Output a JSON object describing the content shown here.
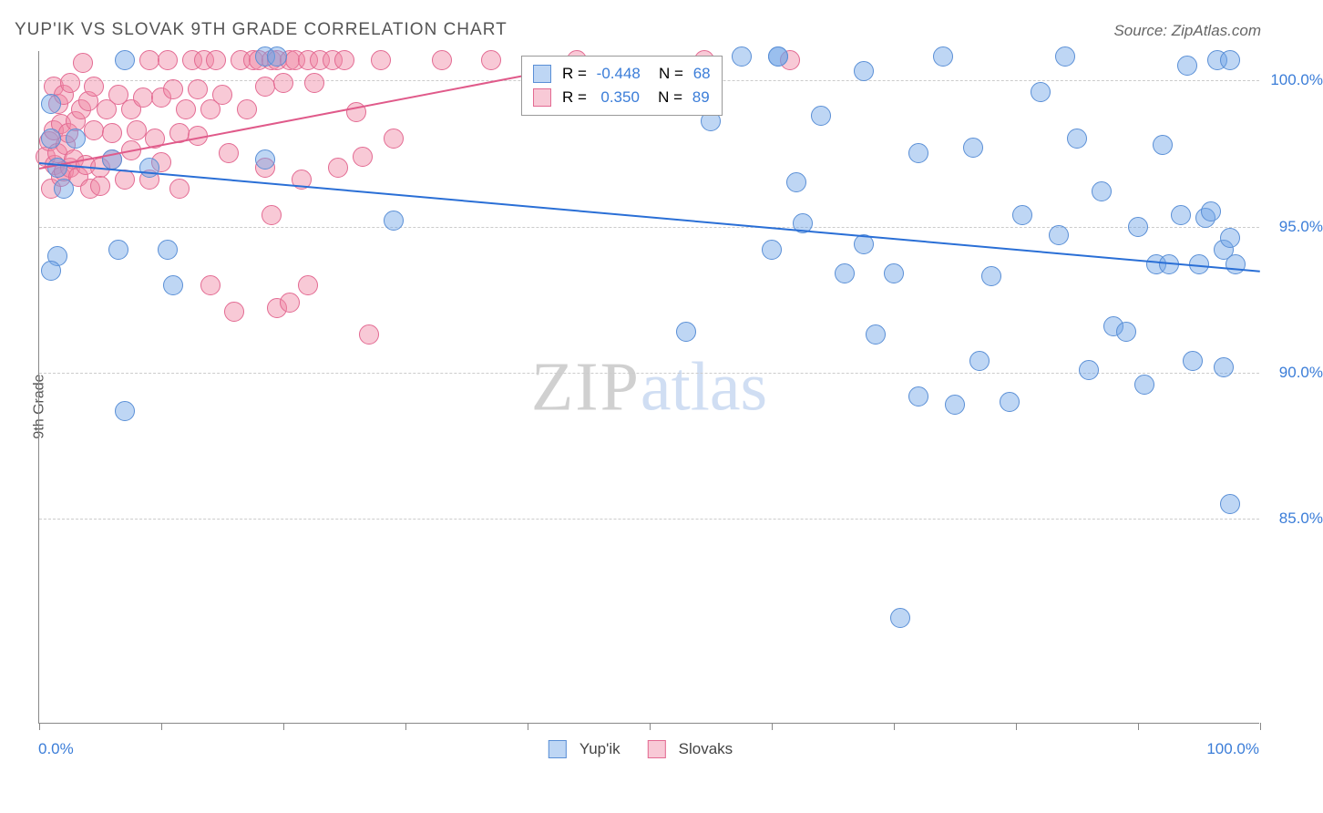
{
  "title": "YUP'IK VS SLOVAK 9TH GRADE CORRELATION CHART",
  "source": "Source: ZipAtlas.com",
  "ylabel": "9th Grade",
  "watermark_strong": "ZIP",
  "watermark_light": "atlas",
  "xaxis": {
    "min": 0.0,
    "max": 100.0,
    "label_left": "0.0%",
    "label_right": "100.0%",
    "tick_positions": [
      0,
      10,
      20,
      30,
      40,
      50,
      60,
      70,
      80,
      90,
      100
    ]
  },
  "yaxis": {
    "min": 78.0,
    "max": 101.0,
    "ticks": [
      {
        "value": 100.0,
        "label": "100.0%"
      },
      {
        "value": 95.0,
        "label": "95.0%"
      },
      {
        "value": 90.0,
        "label": "90.0%"
      },
      {
        "value": 85.0,
        "label": "85.0%"
      }
    ]
  },
  "colors": {
    "yupik_fill": "rgba(110,165,230,0.45)",
    "yupik_stroke": "#5a8fd6",
    "slovak_fill": "rgba(240,135,165,0.45)",
    "slovak_stroke": "#e36a92",
    "yupik_line": "#2a6fd6",
    "slovak_line": "#e05a8a",
    "grid": "#cccccc",
    "axis": "#888888",
    "text": "#555555",
    "tick_label": "#3b7dd8"
  },
  "stats_box": {
    "rows": [
      {
        "swatch": "yupik",
        "r_label": "R = ",
        "r_value": "-0.448",
        "n_label": "   N = ",
        "n_value": "68"
      },
      {
        "swatch": "slovak",
        "r_label": "R = ",
        "r_value": " 0.350",
        "n_label": "   N = ",
        "n_value": "89"
      }
    ]
  },
  "bottom_legend": [
    {
      "swatch": "yupik",
      "label": "Yup'ik"
    },
    {
      "swatch": "slovak",
      "label": "Slovaks"
    }
  ],
  "trend_lines": {
    "yupik": {
      "x1": 0,
      "y1": 97.2,
      "x2": 100,
      "y2": 93.5,
      "color_key": "yupik_line"
    },
    "slovak": {
      "x1": 0,
      "y1": 97.0,
      "x2": 45,
      "y2": 100.6,
      "color_key": "slovak_line"
    }
  },
  "point_radius": 11,
  "series": {
    "yupik": [
      [
        60.5,
        100.8
      ],
      [
        7.0,
        100.7
      ],
      [
        6.0,
        97.3
      ],
      [
        1.0,
        99.2
      ],
      [
        1.5,
        97.0
      ],
      [
        1.0,
        98.0
      ],
      [
        2.0,
        96.3
      ],
      [
        3.0,
        98.0
      ],
      [
        6.5,
        94.2
      ],
      [
        9.0,
        97.0
      ],
      [
        18.5,
        100.8
      ],
      [
        18.5,
        97.3
      ],
      [
        19.5,
        100.8
      ],
      [
        7.0,
        88.7
      ],
      [
        1.5,
        94.0
      ],
      [
        10.5,
        94.2
      ],
      [
        11.0,
        93.0
      ],
      [
        1.0,
        93.5
      ],
      [
        29.0,
        95.2
      ],
      [
        57.5,
        100.8
      ],
      [
        53.0,
        91.4
      ],
      [
        55.0,
        98.6
      ],
      [
        60.0,
        94.2
      ],
      [
        60.5,
        100.8
      ],
      [
        62.0,
        96.5
      ],
      [
        62.5,
        95.1
      ],
      [
        64.0,
        98.8
      ],
      [
        66.0,
        93.4
      ],
      [
        67.5,
        94.4
      ],
      [
        67.5,
        100.3
      ],
      [
        68.5,
        91.3
      ],
      [
        70.0,
        93.4
      ],
      [
        70.5,
        81.6
      ],
      [
        72.0,
        89.2
      ],
      [
        72.0,
        97.5
      ],
      [
        74.0,
        100.8
      ],
      [
        75.0,
        88.9
      ],
      [
        76.5,
        97.7
      ],
      [
        77.0,
        90.4
      ],
      [
        78.0,
        93.3
      ],
      [
        79.5,
        89.0
      ],
      [
        80.5,
        95.4
      ],
      [
        82.0,
        99.6
      ],
      [
        83.5,
        94.7
      ],
      [
        84.0,
        100.8
      ],
      [
        85.0,
        98.0
      ],
      [
        86.0,
        90.1
      ],
      [
        87.0,
        96.2
      ],
      [
        88.0,
        91.6
      ],
      [
        89.0,
        91.4
      ],
      [
        90.0,
        95.0
      ],
      [
        90.5,
        89.6
      ],
      [
        91.5,
        93.7
      ],
      [
        92.0,
        97.8
      ],
      [
        92.5,
        93.7
      ],
      [
        93.5,
        95.4
      ],
      [
        94.0,
        100.5
      ],
      [
        94.5,
        90.4
      ],
      [
        95.0,
        93.7
      ],
      [
        95.5,
        95.3
      ],
      [
        96.0,
        95.5
      ],
      [
        96.5,
        100.7
      ],
      [
        97.0,
        94.2
      ],
      [
        97.0,
        90.2
      ],
      [
        97.5,
        94.6
      ],
      [
        97.5,
        85.5
      ],
      [
        97.5,
        100.7
      ],
      [
        98.0,
        93.7
      ]
    ],
    "slovak": [
      [
        0.5,
        97.4
      ],
      [
        0.8,
        97.9
      ],
      [
        1.0,
        96.3
      ],
      [
        1.2,
        98.3
      ],
      [
        1.2,
        99.8
      ],
      [
        1.3,
        97.1
      ],
      [
        1.5,
        97.5
      ],
      [
        1.6,
        99.2
      ],
      [
        1.8,
        96.7
      ],
      [
        1.8,
        98.5
      ],
      [
        2.0,
        99.5
      ],
      [
        2.0,
        96.9
      ],
      [
        2.2,
        97.8
      ],
      [
        2.4,
        98.2
      ],
      [
        2.5,
        99.9
      ],
      [
        2.5,
        97.0
      ],
      [
        2.8,
        97.3
      ],
      [
        3.0,
        98.6
      ],
      [
        3.2,
        96.7
      ],
      [
        3.4,
        99.0
      ],
      [
        3.6,
        100.6
      ],
      [
        3.8,
        97.1
      ],
      [
        4.0,
        99.3
      ],
      [
        4.2,
        96.3
      ],
      [
        4.5,
        98.3
      ],
      [
        4.5,
        99.8
      ],
      [
        5.0,
        97.0
      ],
      [
        5.0,
        96.4
      ],
      [
        5.5,
        99.0
      ],
      [
        6.0,
        98.2
      ],
      [
        6.0,
        97.3
      ],
      [
        6.5,
        99.5
      ],
      [
        7.0,
        96.6
      ],
      [
        7.5,
        99.0
      ],
      [
        7.5,
        97.6
      ],
      [
        8.0,
        98.3
      ],
      [
        8.5,
        99.4
      ],
      [
        9.0,
        100.7
      ],
      [
        9.0,
        96.6
      ],
      [
        9.5,
        98.0
      ],
      [
        10.0,
        99.4
      ],
      [
        10.0,
        97.2
      ],
      [
        10.5,
        100.7
      ],
      [
        11.0,
        99.7
      ],
      [
        11.5,
        98.2
      ],
      [
        11.5,
        96.3
      ],
      [
        12.0,
        99.0
      ],
      [
        12.5,
        100.7
      ],
      [
        13.0,
        99.7
      ],
      [
        13.0,
        98.1
      ],
      [
        13.5,
        100.7
      ],
      [
        14.0,
        99.0
      ],
      [
        14.0,
        93.0
      ],
      [
        14.5,
        100.7
      ],
      [
        15.0,
        99.5
      ],
      [
        15.5,
        97.5
      ],
      [
        16.0,
        92.1
      ],
      [
        16.5,
        100.7
      ],
      [
        17.0,
        99.0
      ],
      [
        17.5,
        100.7
      ],
      [
        18.0,
        100.7
      ],
      [
        18.5,
        99.8
      ],
      [
        18.5,
        97.0
      ],
      [
        19.0,
        100.7
      ],
      [
        19.0,
        95.4
      ],
      [
        19.5,
        92.2
      ],
      [
        19.5,
        100.7
      ],
      [
        20.0,
        99.9
      ],
      [
        20.5,
        92.4
      ],
      [
        20.5,
        100.7
      ],
      [
        21.0,
        100.7
      ],
      [
        21.5,
        96.6
      ],
      [
        22.0,
        93.0
      ],
      [
        22.0,
        100.7
      ],
      [
        22.5,
        99.9
      ],
      [
        23.0,
        100.7
      ],
      [
        24.0,
        100.7
      ],
      [
        24.5,
        97.0
      ],
      [
        25.0,
        100.7
      ],
      [
        26.0,
        98.9
      ],
      [
        26.5,
        97.4
      ],
      [
        27.0,
        91.3
      ],
      [
        28.0,
        100.7
      ],
      [
        29.0,
        98.0
      ],
      [
        33.0,
        100.7
      ],
      [
        37.0,
        100.7
      ],
      [
        44.0,
        100.7
      ],
      [
        54.5,
        100.7
      ],
      [
        61.5,
        100.7
      ]
    ]
  }
}
